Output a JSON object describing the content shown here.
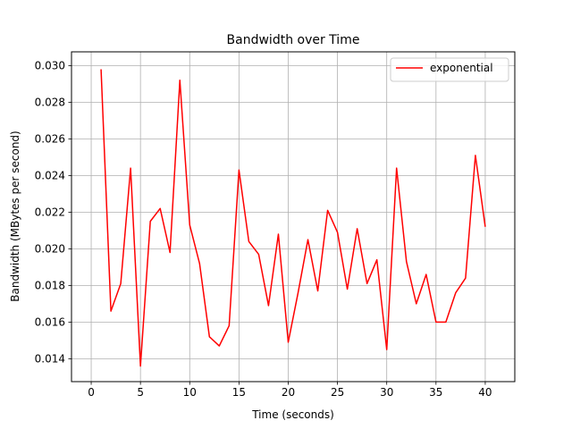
{
  "chart_data": {
    "type": "line",
    "title": "Bandwidth over Time",
    "xlabel": "Time (seconds)",
    "ylabel": "Bandwidth (MBytes per second)",
    "xlim": [
      -2.0,
      43.0
    ],
    "ylim": [
      0.01275,
      0.03075
    ],
    "xticks": [
      0,
      5,
      10,
      15,
      20,
      25,
      30,
      35,
      40
    ],
    "yticks": [
      0.014,
      0.016,
      0.018,
      0.02,
      0.022,
      0.024,
      0.026,
      0.028,
      0.03
    ],
    "ytick_labels": [
      "0.014",
      "0.016",
      "0.018",
      "0.020",
      "0.022",
      "0.024",
      "0.026",
      "0.028",
      "0.030"
    ],
    "grid": true,
    "legend_position": "top-right",
    "series": [
      {
        "name": "exponential",
        "color": "#ff0000",
        "x": [
          1,
          2,
          3,
          4,
          5,
          6,
          7,
          8,
          9,
          10,
          11,
          12,
          13,
          14,
          15,
          16,
          17,
          18,
          19,
          20,
          21,
          22,
          23,
          24,
          25,
          26,
          27,
          28,
          29,
          30,
          31,
          32,
          33,
          34,
          35,
          36,
          37,
          38,
          39,
          40
        ],
        "values": [
          0.0298,
          0.0166,
          0.0181,
          0.0244,
          0.0136,
          0.0215,
          0.0222,
          0.0198,
          0.0292,
          0.0213,
          0.0192,
          0.0152,
          0.0147,
          0.0158,
          0.0243,
          0.0204,
          0.0197,
          0.0169,
          0.0208,
          0.0149,
          0.0176,
          0.0205,
          0.0177,
          0.0221,
          0.0209,
          0.0178,
          0.0211,
          0.0181,
          0.0194,
          0.0145,
          0.0244,
          0.0193,
          0.017,
          0.0186,
          0.016,
          0.016,
          0.0176,
          0.0184,
          0.0251,
          0.0212
        ]
      }
    ]
  }
}
